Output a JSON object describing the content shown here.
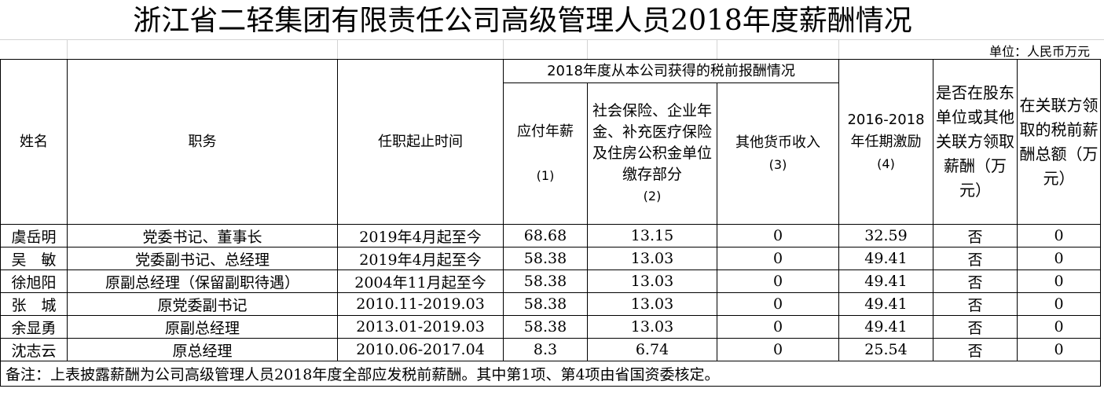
{
  "title": "浙江省二轻集团有限责任公司高级管理人员2018年度薪酬情况",
  "unit": "单位：人民币万元",
  "headers": {
    "name": "姓名",
    "position": "职务",
    "term": "任职起止时间",
    "group": "2018年度从本公司获得的税前报酬情况",
    "salary": "应付年薪",
    "salary_no": "(1)",
    "insurance": "社会保险、企业年金、补充医疗保险及住房公积金单位缴存部分",
    "insurance_no": "(2)",
    "other": "其他货币收入",
    "other_no": "(3)",
    "incentive": "2016-2018年任期激励",
    "incentive_no": "(4)",
    "shareholder": "是否在股东单位或其他关联方领取薪酬（万元）",
    "related": "在关联方领取的税前薪酬总额（万元）"
  },
  "rows": [
    {
      "name": "虞岳明",
      "position": "党委书记、董事长",
      "term": "2019年4月起至今",
      "salary": "68.68",
      "insurance": "13.15",
      "other": "0",
      "incentive": "32.59",
      "shareholder": "否",
      "related": "0"
    },
    {
      "name": "吴　敏",
      "position": "党委副书记、总经理",
      "term": "2019年4月起至今",
      "salary": "58.38",
      "insurance": "13.03",
      "other": "0",
      "incentive": "49.41",
      "shareholder": "否",
      "related": "0"
    },
    {
      "name": "徐旭阳",
      "position": "原副总经理（保留副职待遇）",
      "term": "2004年11月起至今",
      "salary": "58.38",
      "insurance": "13.03",
      "other": "0",
      "incentive": "49.41",
      "shareholder": "否",
      "related": "0"
    },
    {
      "name": "张　城",
      "position": "原党委副书记",
      "term": "2010.11-2019.03",
      "salary": "58.38",
      "insurance": "13.03",
      "other": "0",
      "incentive": "49.41",
      "shareholder": "否",
      "related": "0"
    },
    {
      "name": "余显勇",
      "position": "原副总经理",
      "term": "2013.01-2019.03",
      "salary": "58.38",
      "insurance": "13.03",
      "other": "0",
      "incentive": "49.41",
      "shareholder": "否",
      "related": "0"
    },
    {
      "name": "沈志云",
      "position": "原总经理",
      "term": "2010.06-2017.04",
      "salary": "8.3",
      "insurance": "6.74",
      "other": "0",
      "incentive": "25.54",
      "shareholder": "否",
      "related": "0"
    }
  ],
  "note": "备注：上表披露薪酬为公司高级管理人员2018年度全部应发税前薪酬。其中第1项、第4项由省国资委核定。"
}
